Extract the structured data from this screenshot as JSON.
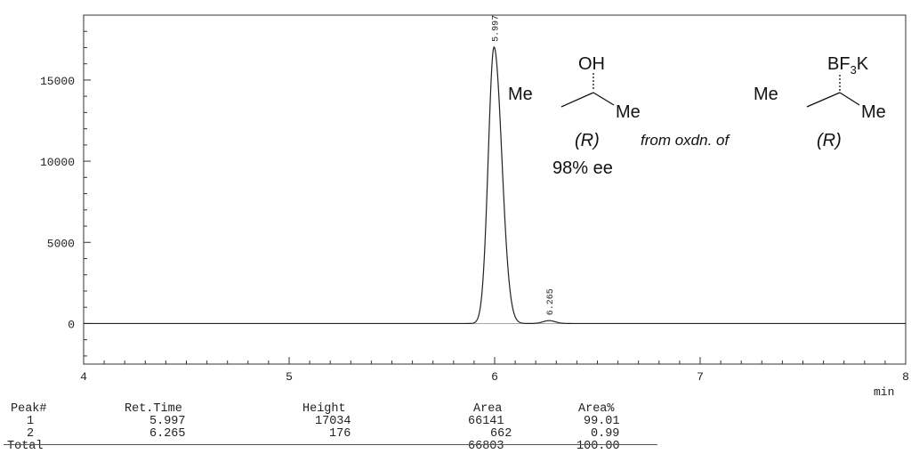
{
  "chart_data": {
    "type": "line",
    "xlabel": "min",
    "ylabel": "",
    "xlim": [
      4,
      8
    ],
    "ylim": [
      -2500,
      19000
    ],
    "x_ticks": [
      "4",
      "5",
      "6",
      "7",
      "8"
    ],
    "y_ticks": [
      "0",
      "5000",
      "10000",
      "15000"
    ],
    "grid": false,
    "series": [
      {
        "x": [
          4.0,
          5.9,
          5.95,
          5.97,
          5.997,
          6.02,
          6.05,
          6.08,
          6.12,
          6.2,
          6.24,
          6.265,
          6.29,
          6.33,
          8.0
        ],
        "y": [
          0,
          0,
          300,
          8000,
          17034,
          12000,
          4000,
          1000,
          200,
          40,
          140,
          176,
          130,
          20,
          0
        ]
      }
    ],
    "peak_labels": [
      {
        "time": "5.997",
        "x": 5.997,
        "y": 17034
      },
      {
        "time": "6.265",
        "x": 6.265,
        "y": 176
      }
    ]
  },
  "annotation": {
    "left_substituent": "Me",
    "right_substituent": "Me",
    "functional_group": "OH",
    "config": "(R)",
    "ee": "98% ee",
    "from_text": "from oxdn. of",
    "bf3k": {
      "b": "BF",
      "sub": "3",
      "k": "K"
    },
    "right_left_substituent": "Me",
    "right_right_substituent": "Me",
    "right_config": "(R)"
  },
  "table": {
    "headers": [
      "Peak#",
      "Ret.Time",
      "Height",
      "Area",
      "Area%"
    ],
    "rows": [
      [
        "1",
        "5.997",
        "17034",
        "66141",
        "99.01"
      ],
      [
        "2",
        "6.265",
        "176",
        "662",
        "0.99"
      ]
    ],
    "total": {
      "label": "Total",
      "area": "66803",
      "area_pct": "100.00"
    }
  }
}
